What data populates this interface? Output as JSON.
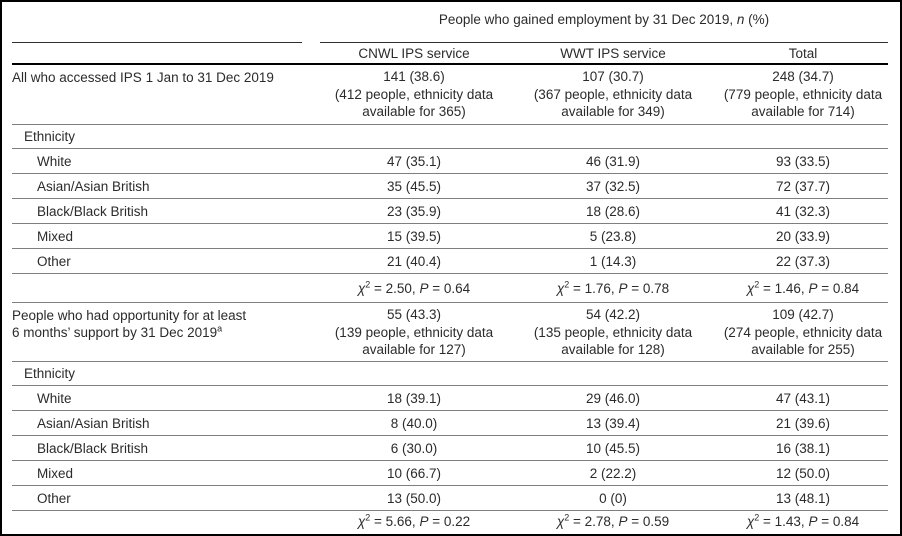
{
  "appearance": {
    "background_color": "#ffffff",
    "text_color": "#2b2b2b",
    "frame_border_color": "#000000",
    "thin_rule_color": "#7f7f7f",
    "header_rule_color": "#2f2f2f",
    "heavy_rule_color": "#000000"
  },
  "table": {
    "spanner": {
      "prefix": "People who gained employment by 31 Dec 2019, ",
      "italic": "n",
      "suffix": " (%)"
    },
    "columns": [
      "CNWL IPS service",
      "WWT IPS service",
      "Total"
    ],
    "sections": [
      {
        "main": {
          "label_lines": [
            "All who accessed IPS 1 Jan to 31 Dec 2019"
          ],
          "superscript": "",
          "cells": [
            [
              "141 (38.6)",
              "(412 people, ethnicity data",
              "available for 365)"
            ],
            [
              "107 (30.7)",
              "(367 people, ethnicity data",
              "available for 349)"
            ],
            [
              "248 (34.7)",
              "(779 people, ethnicity data",
              "available for 714)"
            ]
          ]
        },
        "group_label": "Ethnicity",
        "rows": [
          {
            "label": "White",
            "values": [
              "47 (35.1)",
              "46 (31.9)",
              "93 (33.5)"
            ]
          },
          {
            "label": "Asian/Asian British",
            "values": [
              "35 (45.5)",
              "37 (32.5)",
              "72 (37.7)"
            ]
          },
          {
            "label": "Black/Black British",
            "values": [
              "23 (35.9)",
              "18 (28.6)",
              "41 (32.3)"
            ]
          },
          {
            "label": "Mixed",
            "values": [
              "15 (39.5)",
              "5 (23.8)",
              "20 (33.9)"
            ]
          },
          {
            "label": "Other",
            "values": [
              "21 (40.4)",
              "1 (14.3)",
              "22 (37.3)"
            ]
          }
        ],
        "chi": [
          {
            "chi": "2.50",
            "p": "0.64"
          },
          {
            "chi": "1.76",
            "p": "0.78"
          },
          {
            "chi": "1.46",
            "p": "0.84"
          }
        ]
      },
      {
        "main": {
          "label_lines": [
            "People who had opportunity for at least",
            "6 months’ support by 31 Dec 2019"
          ],
          "superscript": "a",
          "cells": [
            [
              "55 (43.3)",
              "(139 people, ethnicity data",
              "available for 127)"
            ],
            [
              "54 (42.2)",
              "(135 people, ethnicity data",
              "available for 128)"
            ],
            [
              "109 (42.7)",
              "(274 people, ethnicity data",
              "available for 255)"
            ]
          ]
        },
        "group_label": "Ethnicity",
        "rows": [
          {
            "label": "White",
            "values": [
              "18 (39.1)",
              "29 (46.0)",
              "47 (43.1)"
            ]
          },
          {
            "label": "Asian/Asian British",
            "values": [
              "8 (40.0)",
              "13 (39.4)",
              "21 (39.6)"
            ]
          },
          {
            "label": "Black/Black British",
            "values": [
              "6 (30.0)",
              "10 (45.5)",
              "16 (38.1)"
            ]
          },
          {
            "label": "Mixed",
            "values": [
              "10 (66.7)",
              "2 (22.2)",
              "12 (50.0)"
            ]
          },
          {
            "label": "Other",
            "values": [
              "13 (50.0)",
              "0 (0)",
              "13 (48.1)"
            ]
          }
        ],
        "chi": [
          {
            "chi": "5.66",
            "p": "0.22"
          },
          {
            "chi": "2.78",
            "p": "0.59"
          },
          {
            "chi": "1.43",
            "p": "0.84"
          }
        ]
      }
    ]
  }
}
